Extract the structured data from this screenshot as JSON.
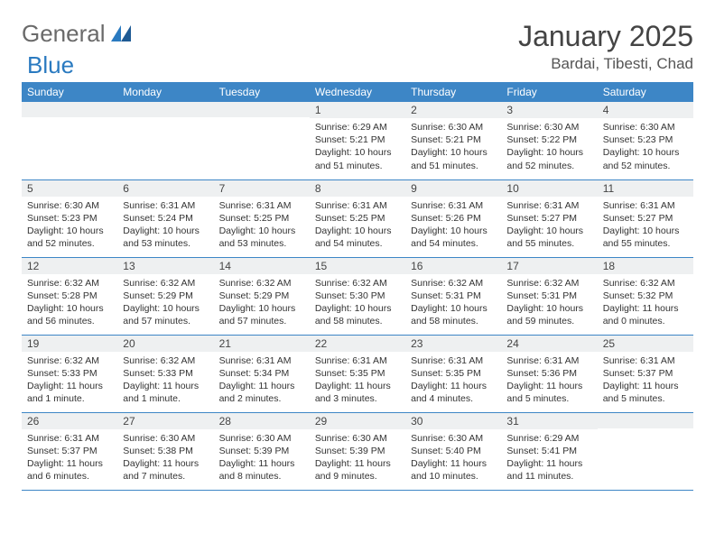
{
  "logo": {
    "textA": "General",
    "textB": "Blue"
  },
  "title": "January 2025",
  "location": "Bardai, Tibesti, Chad",
  "colors": {
    "header_bg": "#3d86c6",
    "header_text": "#ffffff",
    "daynum_bg": "#eef0f1",
    "border": "#3d86c6",
    "logo_blue": "#2a7ac0",
    "text": "#333333"
  },
  "day_headers": [
    "Sunday",
    "Monday",
    "Tuesday",
    "Wednesday",
    "Thursday",
    "Friday",
    "Saturday"
  ],
  "weeks": [
    [
      {
        "n": "",
        "lines": []
      },
      {
        "n": "",
        "lines": []
      },
      {
        "n": "",
        "lines": []
      },
      {
        "n": "1",
        "lines": [
          "Sunrise: 6:29 AM",
          "Sunset: 5:21 PM",
          "Daylight: 10 hours",
          "and 51 minutes."
        ]
      },
      {
        "n": "2",
        "lines": [
          "Sunrise: 6:30 AM",
          "Sunset: 5:21 PM",
          "Daylight: 10 hours",
          "and 51 minutes."
        ]
      },
      {
        "n": "3",
        "lines": [
          "Sunrise: 6:30 AM",
          "Sunset: 5:22 PM",
          "Daylight: 10 hours",
          "and 52 minutes."
        ]
      },
      {
        "n": "4",
        "lines": [
          "Sunrise: 6:30 AM",
          "Sunset: 5:23 PM",
          "Daylight: 10 hours",
          "and 52 minutes."
        ]
      }
    ],
    [
      {
        "n": "5",
        "lines": [
          "Sunrise: 6:30 AM",
          "Sunset: 5:23 PM",
          "Daylight: 10 hours",
          "and 52 minutes."
        ]
      },
      {
        "n": "6",
        "lines": [
          "Sunrise: 6:31 AM",
          "Sunset: 5:24 PM",
          "Daylight: 10 hours",
          "and 53 minutes."
        ]
      },
      {
        "n": "7",
        "lines": [
          "Sunrise: 6:31 AM",
          "Sunset: 5:25 PM",
          "Daylight: 10 hours",
          "and 53 minutes."
        ]
      },
      {
        "n": "8",
        "lines": [
          "Sunrise: 6:31 AM",
          "Sunset: 5:25 PM",
          "Daylight: 10 hours",
          "and 54 minutes."
        ]
      },
      {
        "n": "9",
        "lines": [
          "Sunrise: 6:31 AM",
          "Sunset: 5:26 PM",
          "Daylight: 10 hours",
          "and 54 minutes."
        ]
      },
      {
        "n": "10",
        "lines": [
          "Sunrise: 6:31 AM",
          "Sunset: 5:27 PM",
          "Daylight: 10 hours",
          "and 55 minutes."
        ]
      },
      {
        "n": "11",
        "lines": [
          "Sunrise: 6:31 AM",
          "Sunset: 5:27 PM",
          "Daylight: 10 hours",
          "and 55 minutes."
        ]
      }
    ],
    [
      {
        "n": "12",
        "lines": [
          "Sunrise: 6:32 AM",
          "Sunset: 5:28 PM",
          "Daylight: 10 hours",
          "and 56 minutes."
        ]
      },
      {
        "n": "13",
        "lines": [
          "Sunrise: 6:32 AM",
          "Sunset: 5:29 PM",
          "Daylight: 10 hours",
          "and 57 minutes."
        ]
      },
      {
        "n": "14",
        "lines": [
          "Sunrise: 6:32 AM",
          "Sunset: 5:29 PM",
          "Daylight: 10 hours",
          "and 57 minutes."
        ]
      },
      {
        "n": "15",
        "lines": [
          "Sunrise: 6:32 AM",
          "Sunset: 5:30 PM",
          "Daylight: 10 hours",
          "and 58 minutes."
        ]
      },
      {
        "n": "16",
        "lines": [
          "Sunrise: 6:32 AM",
          "Sunset: 5:31 PM",
          "Daylight: 10 hours",
          "and 58 minutes."
        ]
      },
      {
        "n": "17",
        "lines": [
          "Sunrise: 6:32 AM",
          "Sunset: 5:31 PM",
          "Daylight: 10 hours",
          "and 59 minutes."
        ]
      },
      {
        "n": "18",
        "lines": [
          "Sunrise: 6:32 AM",
          "Sunset: 5:32 PM",
          "Daylight: 11 hours",
          "and 0 minutes."
        ]
      }
    ],
    [
      {
        "n": "19",
        "lines": [
          "Sunrise: 6:32 AM",
          "Sunset: 5:33 PM",
          "Daylight: 11 hours",
          "and 1 minute."
        ]
      },
      {
        "n": "20",
        "lines": [
          "Sunrise: 6:32 AM",
          "Sunset: 5:33 PM",
          "Daylight: 11 hours",
          "and 1 minute."
        ]
      },
      {
        "n": "21",
        "lines": [
          "Sunrise: 6:31 AM",
          "Sunset: 5:34 PM",
          "Daylight: 11 hours",
          "and 2 minutes."
        ]
      },
      {
        "n": "22",
        "lines": [
          "Sunrise: 6:31 AM",
          "Sunset: 5:35 PM",
          "Daylight: 11 hours",
          "and 3 minutes."
        ]
      },
      {
        "n": "23",
        "lines": [
          "Sunrise: 6:31 AM",
          "Sunset: 5:35 PM",
          "Daylight: 11 hours",
          "and 4 minutes."
        ]
      },
      {
        "n": "24",
        "lines": [
          "Sunrise: 6:31 AM",
          "Sunset: 5:36 PM",
          "Daylight: 11 hours",
          "and 5 minutes."
        ]
      },
      {
        "n": "25",
        "lines": [
          "Sunrise: 6:31 AM",
          "Sunset: 5:37 PM",
          "Daylight: 11 hours",
          "and 5 minutes."
        ]
      }
    ],
    [
      {
        "n": "26",
        "lines": [
          "Sunrise: 6:31 AM",
          "Sunset: 5:37 PM",
          "Daylight: 11 hours",
          "and 6 minutes."
        ]
      },
      {
        "n": "27",
        "lines": [
          "Sunrise: 6:30 AM",
          "Sunset: 5:38 PM",
          "Daylight: 11 hours",
          "and 7 minutes."
        ]
      },
      {
        "n": "28",
        "lines": [
          "Sunrise: 6:30 AM",
          "Sunset: 5:39 PM",
          "Daylight: 11 hours",
          "and 8 minutes."
        ]
      },
      {
        "n": "29",
        "lines": [
          "Sunrise: 6:30 AM",
          "Sunset: 5:39 PM",
          "Daylight: 11 hours",
          "and 9 minutes."
        ]
      },
      {
        "n": "30",
        "lines": [
          "Sunrise: 6:30 AM",
          "Sunset: 5:40 PM",
          "Daylight: 11 hours",
          "and 10 minutes."
        ]
      },
      {
        "n": "31",
        "lines": [
          "Sunrise: 6:29 AM",
          "Sunset: 5:41 PM",
          "Daylight: 11 hours",
          "and 11 minutes."
        ]
      },
      {
        "n": "",
        "lines": []
      }
    ]
  ]
}
